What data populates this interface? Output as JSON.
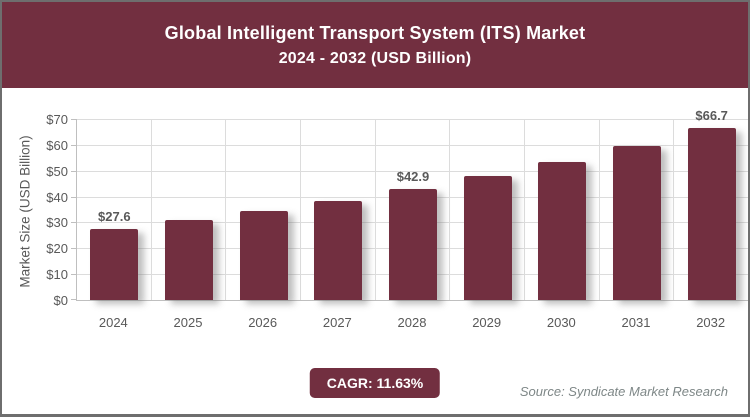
{
  "header": {
    "title_line1": "Global Intelligent Transport System (ITS) Market",
    "title_line2": "2024 - 2032 (USD Billion)"
  },
  "chart_data": {
    "type": "bar",
    "title": "Global Intelligent Transport System (ITS) Market 2024 - 2032 (USD Billion)",
    "categories": [
      "2024",
      "2025",
      "2026",
      "2027",
      "2028",
      "2029",
      "2030",
      "2031",
      "2032"
    ],
    "values": [
      27.6,
      30.8,
      34.4,
      38.4,
      42.9,
      47.9,
      53.5,
      59.7,
      66.7
    ],
    "data_labels": [
      "$27.6",
      "",
      "",
      "",
      "$42.9",
      "",
      "",
      "",
      "$66.7"
    ],
    "xlabel": "",
    "ylabel": "Market Size (USD Billion)",
    "ylim": [
      0,
      70
    ],
    "y_tick_step": 10,
    "y_tick_labels": [
      "$0",
      "$10",
      "$20",
      "$30",
      "$40",
      "$50",
      "$60",
      "$70"
    ],
    "grid": "both",
    "legend": "none",
    "bar_color": "#722F40"
  },
  "footer": {
    "cagr_label": "CAGR: 11.63%",
    "source": "Source: Syndicate Market Research"
  },
  "colors": {
    "accent_maroon": "#722F40",
    "label_gray": "#595959",
    "grid_gray": "#DCDCDC",
    "axis_gray": "#BFBFBF",
    "source_gray": "#7E8787",
    "page_border_gray": "#6E6E6E"
  }
}
